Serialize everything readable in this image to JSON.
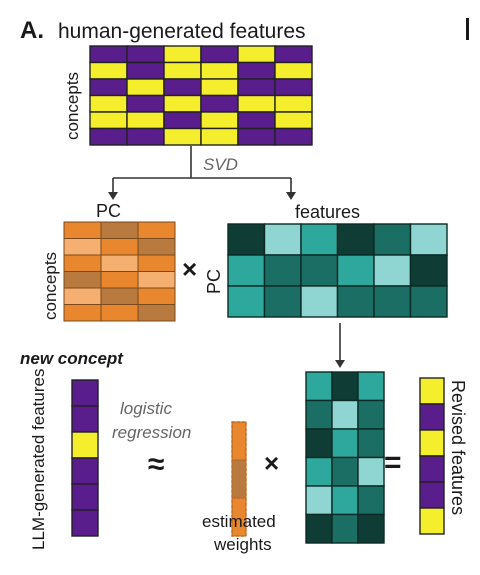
{
  "panel_letter": "A.",
  "title": "human-generated features",
  "labels": {
    "concepts_top": "concepts",
    "svd": "SVD",
    "pc_top": "PC",
    "features": "features",
    "concepts_mid": "concepts",
    "times_mid": "×",
    "pc_side": "PC",
    "new_concept": "new concept",
    "llm_features": "LLM-generated features",
    "logistic": "logistic",
    "regression": "regression",
    "approx": "≈",
    "times_bottom": "×",
    "equals": "=",
    "estimated": "estimated",
    "weights": "weights",
    "revised": "Revised features"
  },
  "colors": {
    "purple": "#5a1e8c",
    "yellow": "#f4ee2c",
    "orange_light": "#f5b071",
    "orange_mid": "#e8872d",
    "orange_dark": "#b87a3e",
    "teal_1": "#0f3d35",
    "teal_2": "#1b6e63",
    "teal_3": "#2ea89c",
    "teal_4": "#8fd5d1"
  },
  "human_matrix": [
    [
      "P",
      "P",
      "Y",
      "P",
      "Y",
      "P"
    ],
    [
      "Y",
      "P",
      "Y",
      "Y",
      "P",
      "Y"
    ],
    [
      "P",
      "Y",
      "P",
      "Y",
      "P",
      "P"
    ],
    [
      "Y",
      "P",
      "Y",
      "P",
      "Y",
      "Y"
    ],
    [
      "Y",
      "Y",
      "P",
      "Y",
      "P",
      "Y"
    ],
    [
      "P",
      "P",
      "Y",
      "Y",
      "P",
      "P"
    ]
  ],
  "pc_concepts_matrix": [
    [
      "m",
      "d",
      "m"
    ],
    [
      "l",
      "m",
      "d"
    ],
    [
      "m",
      "l",
      "m"
    ],
    [
      "d",
      "m",
      "l"
    ],
    [
      "l",
      "d",
      "m"
    ],
    [
      "m",
      "m",
      "d"
    ]
  ],
  "pc_features_matrix": [
    [
      1,
      4,
      3,
      1,
      2,
      4
    ],
    [
      3,
      2,
      2,
      3,
      4,
      1
    ],
    [
      3,
      2,
      4,
      2,
      2,
      2
    ]
  ],
  "llm_vector": [
    "P",
    "P",
    "Y",
    "P",
    "P",
    "P"
  ],
  "weights_vector": [
    "m",
    "d",
    "m"
  ],
  "right_matrix": [
    [
      3,
      1,
      3
    ],
    [
      2,
      4,
      2
    ],
    [
      1,
      3,
      2
    ],
    [
      3,
      2,
      4
    ],
    [
      4,
      3,
      2
    ],
    [
      1,
      2,
      1
    ]
  ],
  "revised_vector": [
    "Y",
    "P",
    "Y",
    "P",
    "P",
    "Y"
  ]
}
